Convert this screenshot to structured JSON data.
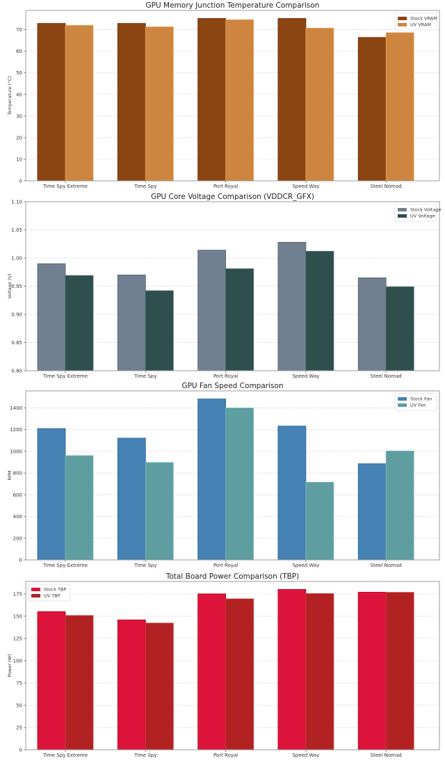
{
  "chart_data": [
    {
      "type": "bar",
      "title": "GPU Memory Junction Temperature Comparison",
      "xlabel": "",
      "ylabel": "Temperature (°C)",
      "categories": [
        "Time Spy Extreme",
        "Time Spy",
        "Port Royal",
        "Speed Way",
        "Steel Nomad"
      ],
      "series": [
        {
          "name": "Stock VRAM",
          "color": "#8B4513",
          "values": [
            72.9,
            72.9,
            75.2,
            75.2,
            66.4
          ]
        },
        {
          "name": "UV VRAM",
          "color": "#CD853F",
          "values": [
            72.0,
            71.3,
            74.6,
            70.7,
            68.6
          ]
        }
      ],
      "ylim": [
        0,
        78.9
      ],
      "yticks": [
        0,
        10,
        20,
        30,
        40,
        50,
        60,
        70
      ],
      "ytick_labels": [
        "0",
        "10",
        "20",
        "30",
        "40",
        "50",
        "60",
        "70"
      ],
      "grid": true,
      "legend": "top-right"
    },
    {
      "type": "bar",
      "title": "GPU Core Voltage Comparison (VDDCR_GFX)",
      "xlabel": "",
      "ylabel": "Voltage (V)",
      "categories": [
        "Time Spy Extreme",
        "Time Spy",
        "Port Royal",
        "Speed Way",
        "Steel Nomad"
      ],
      "series": [
        {
          "name": "Stock Voltage",
          "color": "#708090",
          "values": [
            0.99,
            0.97,
            1.014,
            1.028,
            0.965
          ]
        },
        {
          "name": "UV Voltage",
          "color": "#2F4F4F",
          "values": [
            0.969,
            0.942,
            0.981,
            1.012,
            0.949
          ]
        }
      ],
      "ylim": [
        0.8,
        1.1
      ],
      "yticks": [
        0.8,
        0.85,
        0.9,
        0.95,
        1.0,
        1.05,
        1.1
      ],
      "ytick_labels": [
        "0.80",
        "0.85",
        "0.90",
        "0.95",
        "1.00",
        "1.05",
        "1.10"
      ],
      "grid": true,
      "legend": "top-right"
    },
    {
      "type": "bar",
      "title": "GPU Fan Speed Comparison",
      "xlabel": "",
      "ylabel": "RPM",
      "categories": [
        "Time Spy Extreme",
        "Time Spy",
        "Port Royal",
        "Speed Way",
        "Steel Nomad"
      ],
      "series": [
        {
          "name": "Stock Fan",
          "color": "#4682B4",
          "values": [
            1210,
            1122,
            1483,
            1233,
            886
          ]
        },
        {
          "name": "UV Fan",
          "color": "#5F9EA0",
          "values": [
            961,
            898,
            1400,
            716,
            1004
          ]
        }
      ],
      "ylim": [
        0,
        1557
      ],
      "yticks": [
        0,
        200,
        400,
        600,
        800,
        1000,
        1200,
        1400
      ],
      "ytick_labels": [
        "0",
        "200",
        "400",
        "600",
        "800",
        "1000",
        "1200",
        "1400"
      ],
      "grid": true,
      "legend": "top-right"
    },
    {
      "type": "bar",
      "title": "Total Board Power Comparison (TBP)",
      "xlabel": "",
      "ylabel": "Power (W)",
      "categories": [
        "Time Spy Extreme",
        "Time Spy",
        "Port Royal",
        "Speed Way",
        "Steel Nomad"
      ],
      "series": [
        {
          "name": "Stock TBP",
          "color": "#DC143C",
          "values": [
            155.2,
            145.9,
            175.1,
            180.1,
            177.0
          ]
        },
        {
          "name": "UV TBP",
          "color": "#B22222",
          "values": [
            150.8,
            142.3,
            169.5,
            175.4,
            176.8
          ]
        }
      ],
      "ylim": [
        0,
        189
      ],
      "yticks": [
        0,
        25,
        50,
        75,
        100,
        125,
        150,
        175
      ],
      "ytick_labels": [
        "0",
        "25",
        "50",
        "75",
        "100",
        "125",
        "150",
        "175"
      ],
      "grid": true,
      "legend": "top-left"
    }
  ]
}
